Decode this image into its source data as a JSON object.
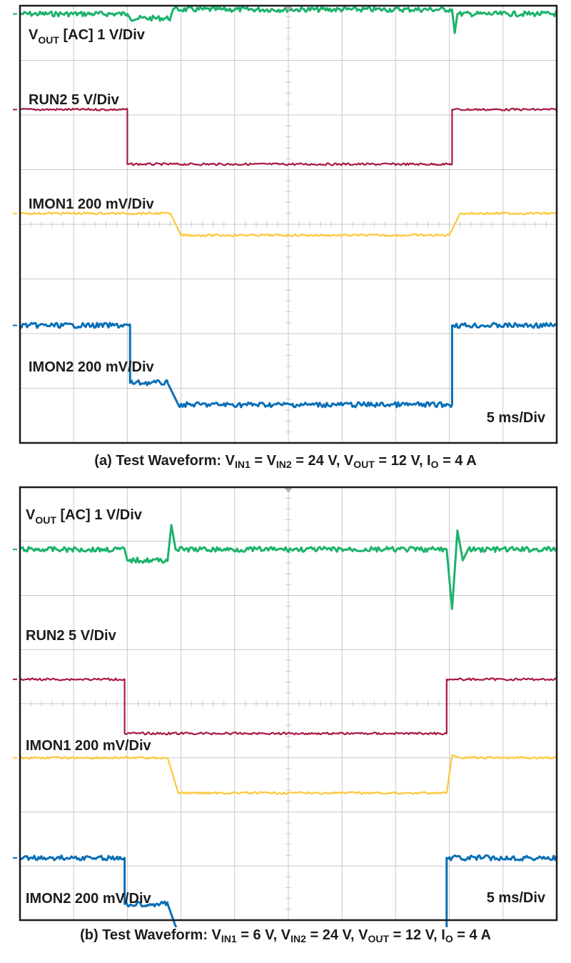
{
  "colors": {
    "vout": "#1bb36b",
    "run2": "#a8193f",
    "imon1": "#fcc739",
    "imon2": "#0a6fb6",
    "grid": "#c9c9c9",
    "frame": "#1c1c1c"
  },
  "chart_data": [
    {
      "type": "line",
      "panel": "a",
      "grid": true,
      "divisions": {
        "x": 10,
        "y": 8
      },
      "labels": {
        "vout": {
          "main": "V",
          "sub": "OUT",
          "rest": " [AC] 1 V/Div"
        },
        "run2": "RUN2 5 V/Div",
        "imon1": "IMON1 200 mV/Div",
        "imon2": "IMON2 200 mV/Div",
        "timebase": "5 ms/Div"
      },
      "caption": {
        "prefix": "(a) Test Waveform: V",
        "sub1": "IN1",
        "mid1": " = V",
        "sub2": "IN2",
        "mid2": " = 24 V, V",
        "sub3": "OUT",
        "mid3": " = 12 V, I",
        "sub4": "O",
        "suffix": " = 4 A"
      },
      "series": [
        {
          "trace": "vout",
          "level_div": 0.15,
          "points": [
            [
              0,
              0
            ],
            [
              2.0,
              0
            ],
            [
              2.05,
              -0.08
            ],
            [
              2.8,
              -0.08
            ],
            [
              2.85,
              0.08
            ],
            [
              8.05,
              0.08
            ],
            [
              8.1,
              -0.35
            ],
            [
              8.15,
              0.0
            ],
            [
              10,
              0
            ]
          ]
        },
        {
          "trace": "run2",
          "level_div": 1.9,
          "points": [
            [
              0,
              0
            ],
            [
              2.0,
              0
            ],
            [
              2.0,
              -1.0
            ],
            [
              8.05,
              -1.0
            ],
            [
              8.05,
              0
            ],
            [
              10,
              0
            ]
          ]
        },
        {
          "trace": "imon1",
          "level_div": 3.8,
          "points": [
            [
              0,
              0
            ],
            [
              2.8,
              0
            ],
            [
              3.0,
              -0.4
            ],
            [
              8.0,
              -0.4
            ],
            [
              8.2,
              0
            ],
            [
              10,
              0
            ]
          ]
        },
        {
          "trace": "imon2",
          "level_div": 5.85,
          "points": [
            [
              0,
              0
            ],
            [
              2.05,
              0
            ],
            [
              2.05,
              -1.05
            ],
            [
              2.75,
              -1.05
            ],
            [
              2.95,
              -1.45
            ],
            [
              8.05,
              -1.45
            ],
            [
              8.05,
              0
            ],
            [
              10,
              0
            ]
          ]
        }
      ]
    },
    {
      "type": "line",
      "panel": "b",
      "grid": true,
      "divisions": {
        "x": 10,
        "y": 8
      },
      "labels": {
        "vout": {
          "main": "V",
          "sub": "OUT",
          "rest": " [AC] 1 V/Div"
        },
        "run2": "RUN2 5 V/Div",
        "imon1": "IMON1 200 mV/Div",
        "imon2": "IMON2 200 mV/Div",
        "timebase": "5 ms/Div"
      },
      "caption": {
        "prefix": "(b) Test Waveform: V",
        "sub1": "IN1",
        "mid1": " = 6 V, V",
        "sub2": "IN2",
        "mid2": " = 24 V, V",
        "sub3": "OUT",
        "mid3": " = 12 V, I",
        "sub4": "O",
        "suffix": " = 4 A"
      },
      "series": [
        {
          "trace": "vout",
          "level_div": 1.15,
          "points": [
            [
              0,
              0
            ],
            [
              1.95,
              0
            ],
            [
              2.0,
              -0.2
            ],
            [
              2.75,
              -0.2
            ],
            [
              2.82,
              0.45
            ],
            [
              2.9,
              0
            ],
            [
              7.95,
              0
            ],
            [
              8.05,
              -1.1
            ],
            [
              8.15,
              0.35
            ],
            [
              8.25,
              -0.2
            ],
            [
              8.35,
              0
            ],
            [
              10,
              0
            ]
          ]
        },
        {
          "trace": "run2",
          "level_div": 3.55,
          "points": [
            [
              0,
              0
            ],
            [
              1.95,
              0
            ],
            [
              1.95,
              -1.0
            ],
            [
              7.95,
              -1.0
            ],
            [
              7.95,
              0
            ],
            [
              10,
              0
            ]
          ]
        },
        {
          "trace": "imon1",
          "level_div": 5.0,
          "points": [
            [
              0,
              0
            ],
            [
              2.75,
              0
            ],
            [
              2.95,
              -0.65
            ],
            [
              7.95,
              -0.65
            ],
            [
              8.05,
              0.05
            ],
            [
              8.2,
              0
            ],
            [
              10,
              0
            ]
          ]
        },
        {
          "trace": "imon2",
          "level_div": 6.85,
          "points": [
            [
              0,
              0
            ],
            [
              1.95,
              0
            ],
            [
              1.95,
              -0.85
            ],
            [
              2.75,
              -0.85
            ],
            [
              2.95,
              -1.4
            ],
            [
              7.95,
              -1.4
            ],
            [
              7.95,
              0
            ],
            [
              10,
              0
            ]
          ]
        }
      ]
    }
  ]
}
